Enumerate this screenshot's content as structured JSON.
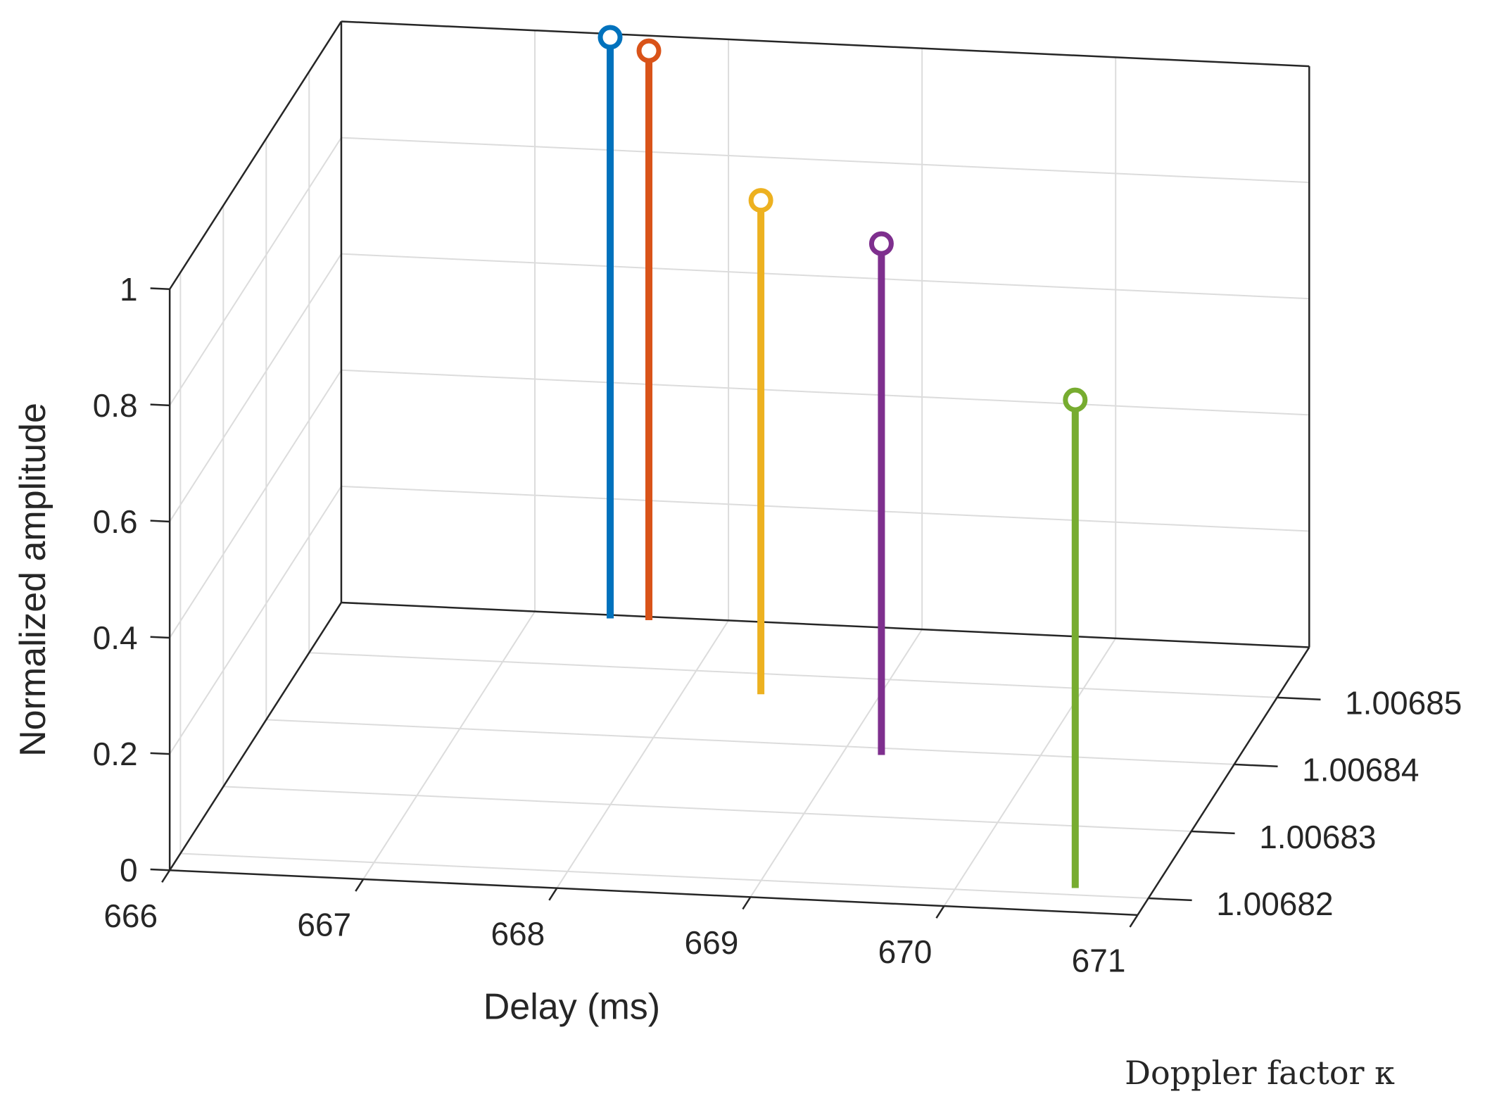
{
  "chart_data": {
    "type": "stem3",
    "xlabel": "Delay (ms)",
    "ylabel": "Doppler factor κ",
    "zlabel": "Normalized amplitude",
    "x_ticks": [
      "666",
      "667",
      "668",
      "669",
      "670",
      "671"
    ],
    "y_ticks": [
      "1.00682",
      "1.00683",
      "1.00684",
      "1.00685"
    ],
    "z_ticks": [
      "0",
      "0.2",
      "0.4",
      "0.6",
      "0.8",
      "1"
    ],
    "xlim": [
      666,
      671
    ],
    "ylim": [
      1.0068175,
      1.0068575
    ],
    "zlim": [
      0,
      1
    ],
    "grid": true,
    "points": [
      {
        "x": 667.4,
        "y": 1.006857,
        "z": 1.0,
        "color": "#0072bd"
      },
      {
        "x": 667.6,
        "y": 1.006857,
        "z": 0.98,
        "color": "#d95319"
      },
      {
        "x": 668.4,
        "y": 1.006847,
        "z": 0.85,
        "color": "#edb120"
      },
      {
        "x": 669.2,
        "y": 1.006839,
        "z": 0.88,
        "color": "#7e2f8e"
      },
      {
        "x": 670.6,
        "y": 1.006821,
        "z": 0.84,
        "color": "#77ac30"
      }
    ]
  }
}
